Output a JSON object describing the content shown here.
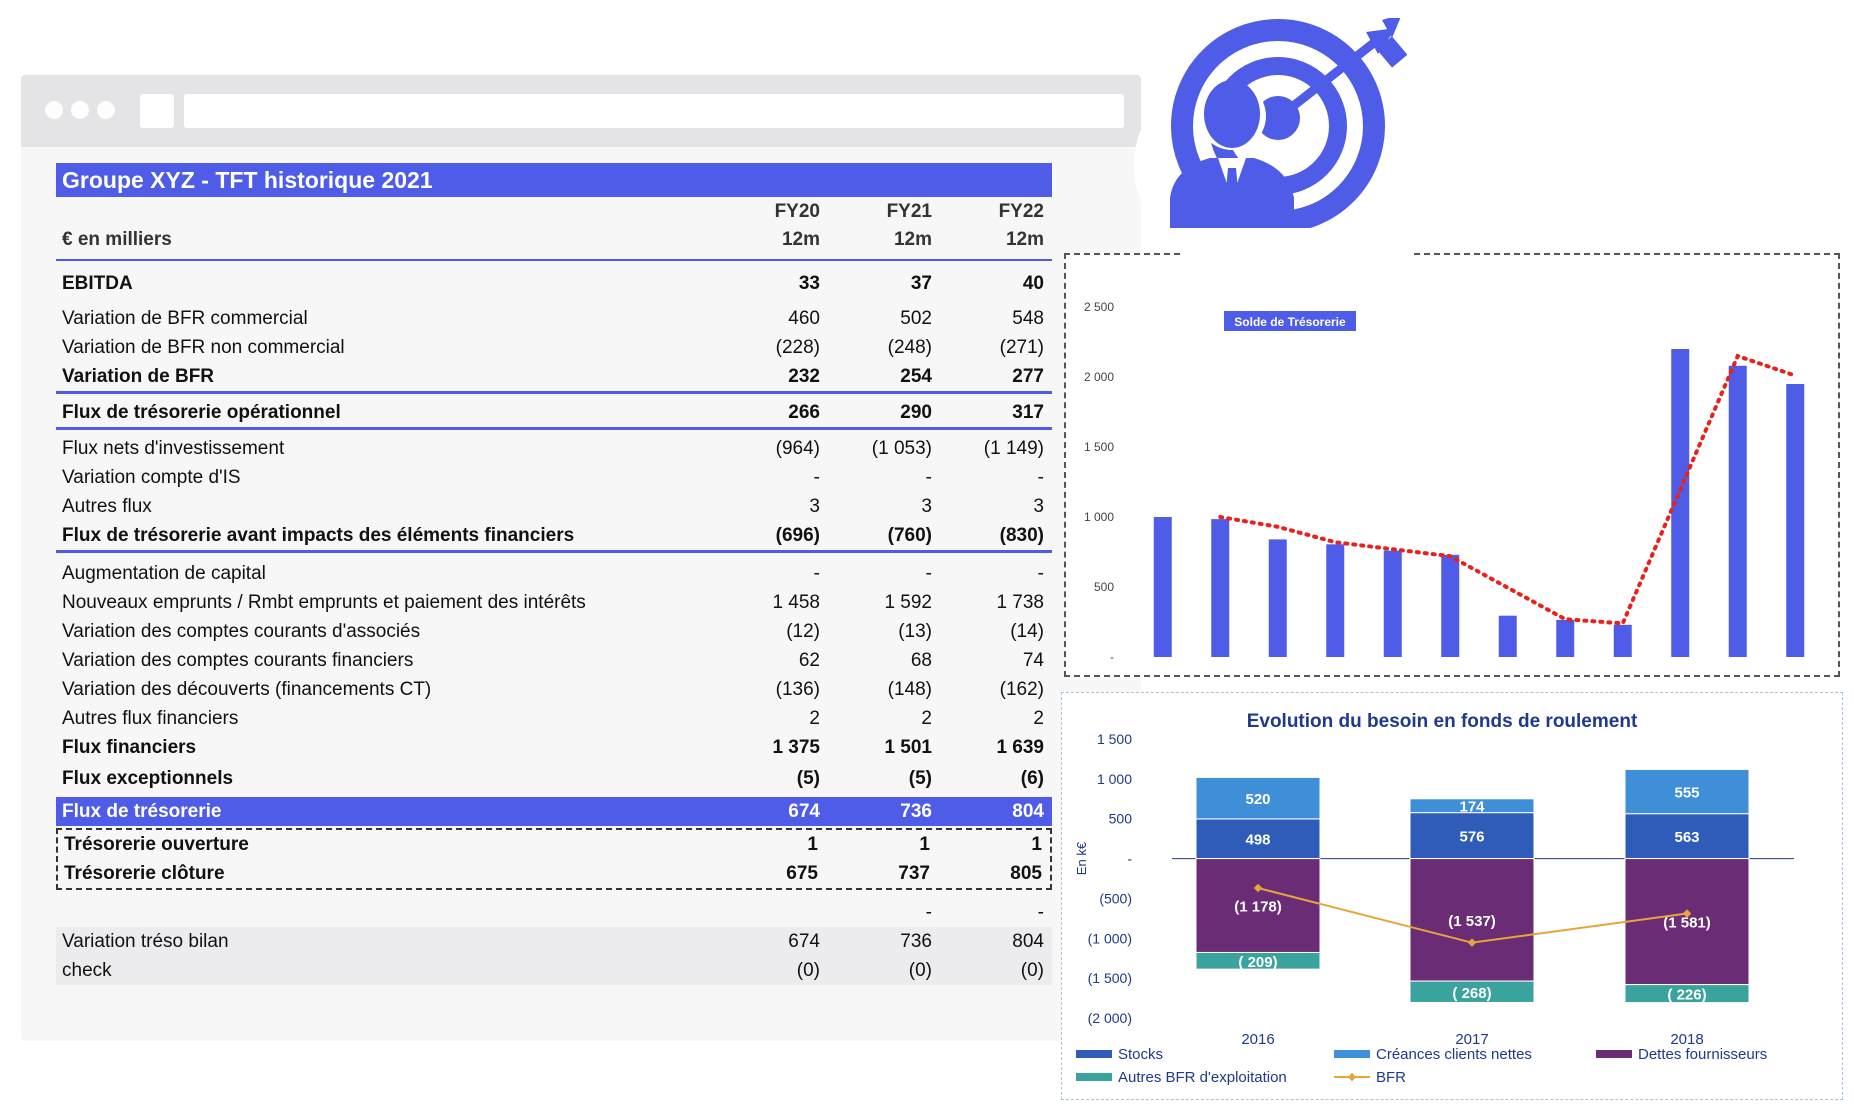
{
  "table": {
    "title": "Groupe XYZ  - TFT historique 2021",
    "unit_label": "€ en milliers",
    "columns": [
      {
        "year": "FY20",
        "period": "12m"
      },
      {
        "year": "FY21",
        "period": "12m"
      },
      {
        "year": "FY22",
        "period": "12m"
      }
    ],
    "rows": [
      {
        "label": "EBITDA",
        "values": [
          "33",
          "37",
          "40"
        ]
      },
      {
        "label": "Variation de BFR commercial",
        "values": [
          "460",
          "502",
          "548"
        ]
      },
      {
        "label": "Variation de BFR non commercial",
        "values": [
          "(228)",
          "(248)",
          "(271)"
        ]
      },
      {
        "label": "Variation de BFR",
        "values": [
          "232",
          "254",
          "277"
        ]
      },
      {
        "label": "Flux de trésorerie opérationnel",
        "values": [
          "266",
          "290",
          "317"
        ]
      },
      {
        "label": "Flux nets d'investissement",
        "values": [
          "(964)",
          "(1 053)",
          "(1 149)"
        ]
      },
      {
        "label": "Variation compte d'IS",
        "values": [
          "-",
          "-",
          "-"
        ]
      },
      {
        "label": "Autres flux",
        "values": [
          "3",
          "3",
          "3"
        ]
      },
      {
        "label": "Flux de trésorerie avant impacts des éléments financiers",
        "values": [
          "(696)",
          "(760)",
          "(830)"
        ]
      },
      {
        "label": "Augmentation de capital",
        "values": [
          "-",
          "-",
          "-"
        ]
      },
      {
        "label": "Nouveaux emprunts / Rmbt emprunts et paiement des intérêts",
        "values": [
          "1 458",
          "1 592",
          "1 738"
        ]
      },
      {
        "label": "Variation des comptes courants d'associés",
        "values": [
          "(12)",
          "(13)",
          "(14)"
        ]
      },
      {
        "label": "Variation des comptes courants financiers",
        "values": [
          "62",
          "68",
          "74"
        ]
      },
      {
        "label": "Variation des découverts (financements CT)",
        "values": [
          "(136)",
          "(148)",
          "(162)"
        ]
      },
      {
        "label": "Autres flux financiers",
        "values": [
          "2",
          "2",
          "2"
        ]
      },
      {
        "label": "Flux financiers",
        "values": [
          "1 375",
          "1 501",
          "1 639"
        ]
      },
      {
        "label": "Flux exceptionnels",
        "values": [
          "(5)",
          "(5)",
          "(6)"
        ]
      },
      {
        "label": "Flux de trésorerie",
        "values": [
          "674",
          "736",
          "804"
        ]
      },
      {
        "label": "Trésorerie ouverture",
        "values": [
          "1",
          "1",
          "1"
        ]
      },
      {
        "label": "Trésorerie clôture",
        "values": [
          "675",
          "737",
          "805"
        ]
      },
      {
        "label": "",
        "values": [
          "",
          "-",
          "-"
        ]
      },
      {
        "label": "Variation tréso bilan",
        "values": [
          "674",
          "736",
          "804"
        ]
      },
      {
        "label": "check",
        "values": [
          "(0)",
          "(0)",
          "(0)"
        ]
      }
    ]
  },
  "icon": {
    "name": "businessman-target-icon",
    "color": "#4f5ce7"
  },
  "chart_data": [
    {
      "type": "bar",
      "legend": "Solde de Trésorerie",
      "y_ticks": [
        "-",
        "500",
        "1 000",
        "1 500",
        "2 000",
        "2 500"
      ],
      "ylim": [
        0,
        2500
      ],
      "values": [
        1000,
        985,
        840,
        805,
        760,
        730,
        295,
        265,
        230,
        2200,
        2080,
        1950
      ],
      "trend": [
        1000,
        930,
        820,
        770,
        720,
        270,
        240,
        2150,
        2010
      ],
      "bar_color": "#4f5ce7",
      "trend_color": "#e8221b"
    },
    {
      "type": "bar",
      "title": "Evolution du besoin en fonds de roulement",
      "ylabel": "En k€",
      "categories": [
        "2016",
        "2017",
        "2018"
      ],
      "y_ticks": [
        "1 500",
        "1 000",
        "500",
        "-",
        "(500)",
        "(1 000)",
        "(1 500)",
        "(2 000)"
      ],
      "ylim": [
        -2000,
        1500
      ],
      "series": [
        {
          "name": "Stocks",
          "values": [
            498,
            576,
            563
          ],
          "labels": [
            "498",
            "576",
            "563"
          ],
          "color": "#2e5cb8"
        },
        {
          "name": "Créances clients nettes",
          "values": [
            520,
            174,
            555
          ],
          "labels": [
            "520",
            "174",
            "555"
          ],
          "color": "#3f8fd8"
        },
        {
          "name": "Dettes fournisseurs",
          "values": [
            -1178,
            -1537,
            -1581
          ],
          "labels": [
            "(1 178)",
            "(1 537)",
            "(1 581)"
          ],
          "color": "#6a2c75"
        },
        {
          "name": "Autres BFR d'exploitation",
          "values": [
            -209,
            -268,
            -226
          ],
          "labels": [
            "( 209)",
            "( 268)",
            "( 226)"
          ],
          "color": "#3aa39e"
        },
        {
          "name": "BFR",
          "values": [
            -369,
            -1055,
            -689
          ],
          "color": "#e8a53a"
        }
      ]
    }
  ]
}
